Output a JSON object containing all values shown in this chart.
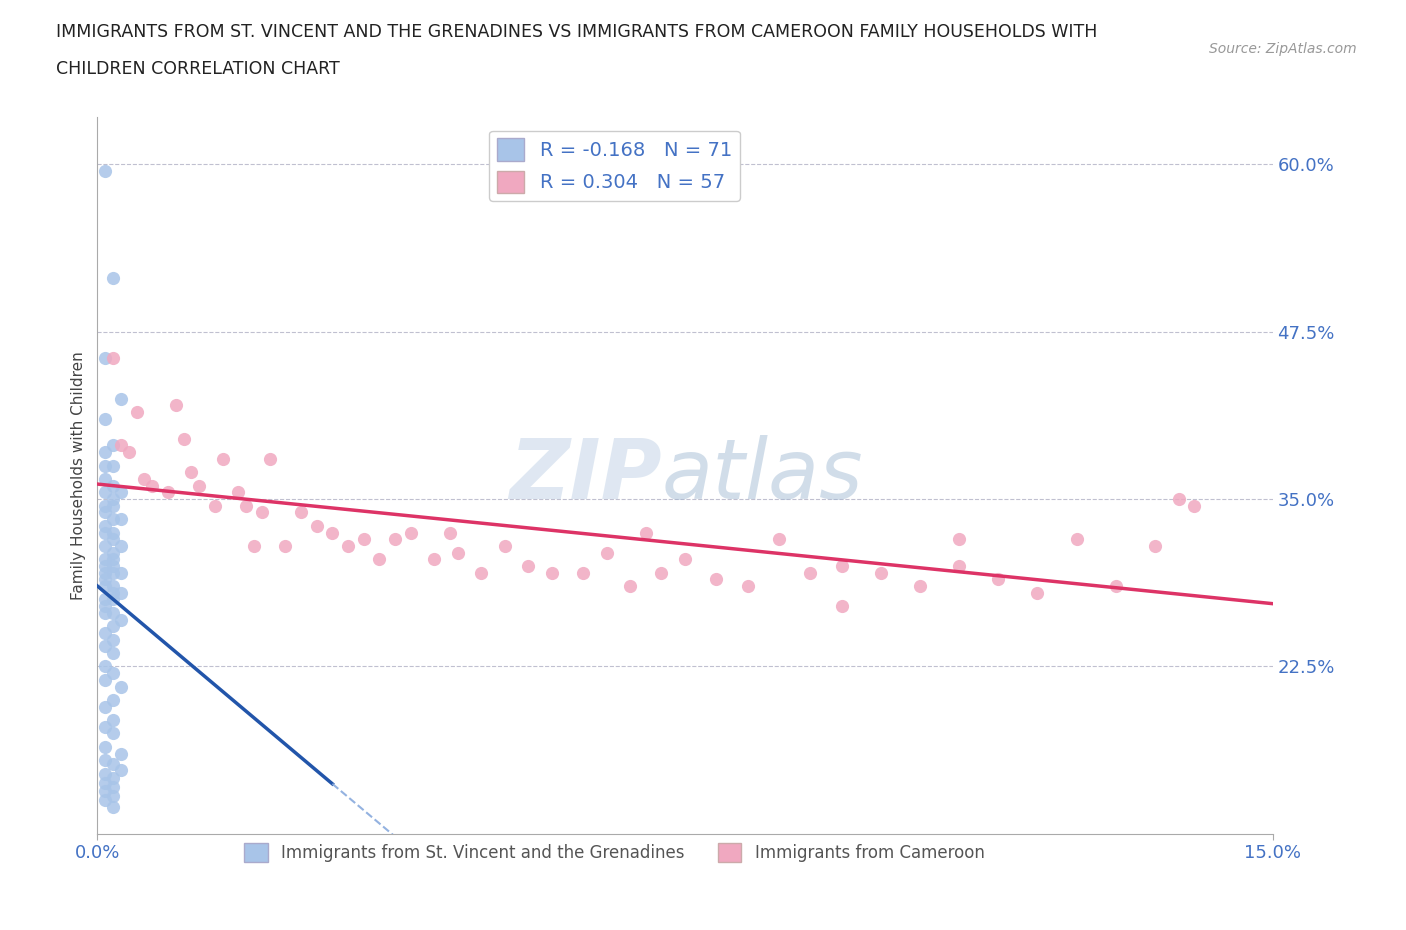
{
  "title_line1": "IMMIGRANTS FROM ST. VINCENT AND THE GRENADINES VS IMMIGRANTS FROM CAMEROON FAMILY HOUSEHOLDS WITH",
  "title_line2": "CHILDREN CORRELATION CHART",
  "source_text": "Source: ZipAtlas.com",
  "ylabel": "Family Households with Children",
  "xmin": 0.0,
  "xmax": 0.15,
  "ymin": 0.1,
  "ymax": 0.635,
  "yticks": [
    0.225,
    0.35,
    0.475,
    0.6
  ],
  "ytick_labels": [
    "22.5%",
    "35.0%",
    "47.5%",
    "60.0%"
  ],
  "xticks": [
    0.0,
    0.15
  ],
  "xtick_labels": [
    "0.0%",
    "15.0%"
  ],
  "r_blue": -0.168,
  "n_blue": 71,
  "r_pink": 0.304,
  "n_pink": 57,
  "color_blue": "#a8c4e8",
  "color_pink": "#f0a8c0",
  "line_color_blue": "#2255aa",
  "line_color_blue_dash": "#88aadd",
  "line_color_pink": "#dd3366",
  "watermark_zip": "ZIP",
  "watermark_atlas": "atlas",
  "legend_label_blue": "Immigrants from St. Vincent and the Grenadines",
  "legend_label_pink": "Immigrants from Cameroon",
  "blue_scatter_x": [
    0.001,
    0.002,
    0.001,
    0.003,
    0.001,
    0.002,
    0.001,
    0.001,
    0.002,
    0.001,
    0.002,
    0.001,
    0.003,
    0.002,
    0.001,
    0.002,
    0.001,
    0.002,
    0.003,
    0.001,
    0.002,
    0.001,
    0.002,
    0.001,
    0.003,
    0.002,
    0.001,
    0.002,
    0.001,
    0.002,
    0.001,
    0.002,
    0.003,
    0.001,
    0.002,
    0.001,
    0.002,
    0.003,
    0.001,
    0.002,
    0.001,
    0.002,
    0.001,
    0.003,
    0.002,
    0.001,
    0.002,
    0.001,
    0.002,
    0.001,
    0.002,
    0.001,
    0.003,
    0.002,
    0.001,
    0.002,
    0.001,
    0.002,
    0.001,
    0.003,
    0.001,
    0.002,
    0.003,
    0.001,
    0.002,
    0.001,
    0.002,
    0.001,
    0.002,
    0.001,
    0.002
  ],
  "blue_scatter_y": [
    0.595,
    0.515,
    0.455,
    0.425,
    0.41,
    0.39,
    0.385,
    0.375,
    0.375,
    0.365,
    0.36,
    0.355,
    0.355,
    0.35,
    0.345,
    0.345,
    0.34,
    0.335,
    0.335,
    0.33,
    0.325,
    0.325,
    0.32,
    0.315,
    0.315,
    0.31,
    0.305,
    0.305,
    0.3,
    0.3,
    0.295,
    0.295,
    0.295,
    0.29,
    0.285,
    0.285,
    0.28,
    0.28,
    0.275,
    0.275,
    0.27,
    0.265,
    0.265,
    0.26,
    0.255,
    0.25,
    0.245,
    0.24,
    0.235,
    0.225,
    0.22,
    0.215,
    0.21,
    0.2,
    0.195,
    0.185,
    0.18,
    0.175,
    0.165,
    0.16,
    0.155,
    0.152,
    0.148,
    0.145,
    0.142,
    0.138,
    0.135,
    0.132,
    0.128,
    0.125,
    0.12
  ],
  "pink_scatter_x": [
    0.002,
    0.004,
    0.005,
    0.007,
    0.009,
    0.01,
    0.012,
    0.013,
    0.015,
    0.016,
    0.018,
    0.019,
    0.021,
    0.022,
    0.024,
    0.026,
    0.028,
    0.03,
    0.032,
    0.034,
    0.036,
    0.038,
    0.04,
    0.043,
    0.046,
    0.049,
    0.052,
    0.055,
    0.058,
    0.062,
    0.065,
    0.068,
    0.072,
    0.075,
    0.079,
    0.083,
    0.087,
    0.091,
    0.095,
    0.1,
    0.105,
    0.11,
    0.115,
    0.12,
    0.125,
    0.13,
    0.135,
    0.14,
    0.003,
    0.006,
    0.011,
    0.02,
    0.045,
    0.07,
    0.095,
    0.11,
    0.138
  ],
  "pink_scatter_y": [
    0.455,
    0.385,
    0.415,
    0.36,
    0.355,
    0.42,
    0.37,
    0.36,
    0.345,
    0.38,
    0.355,
    0.345,
    0.34,
    0.38,
    0.315,
    0.34,
    0.33,
    0.325,
    0.315,
    0.32,
    0.305,
    0.32,
    0.325,
    0.305,
    0.31,
    0.295,
    0.315,
    0.3,
    0.295,
    0.295,
    0.31,
    0.285,
    0.295,
    0.305,
    0.29,
    0.285,
    0.32,
    0.295,
    0.3,
    0.295,
    0.285,
    0.3,
    0.29,
    0.28,
    0.32,
    0.285,
    0.315,
    0.345,
    0.39,
    0.365,
    0.395,
    0.315,
    0.325,
    0.325,
    0.27,
    0.32,
    0.35
  ]
}
